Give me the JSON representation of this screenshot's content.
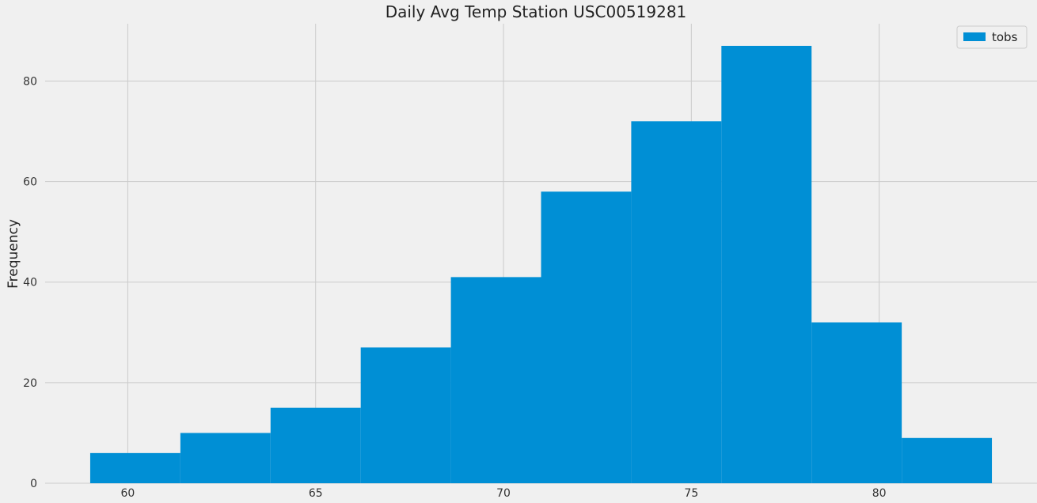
{
  "chart_data": {
    "type": "bar",
    "title": "Daily Avg Temp Station USC00519281",
    "xlabel": "",
    "ylabel": "Frequency",
    "xlim": [
      57.8,
      84.2
    ],
    "ylim": [
      0,
      91.4
    ],
    "xticks": [
      60,
      65,
      70,
      75,
      80
    ],
    "yticks": [
      0,
      20,
      40,
      60,
      80
    ],
    "grid": true,
    "legend": {
      "position": "top-right",
      "entries": [
        "tobs"
      ]
    },
    "series": [
      {
        "name": "tobs",
        "color": "#008fd5",
        "bins": [
          {
            "x0": 59.0,
            "x1": 61.4,
            "value": 6
          },
          {
            "x0": 61.4,
            "x1": 63.8,
            "value": 10
          },
          {
            "x0": 63.8,
            "x1": 66.2,
            "value": 15
          },
          {
            "x0": 66.2,
            "x1": 68.6,
            "value": 27
          },
          {
            "x0": 68.6,
            "x1": 71.0,
            "value": 41
          },
          {
            "x0": 71.0,
            "x1": 73.4,
            "value": 58
          },
          {
            "x0": 73.4,
            "x1": 75.8,
            "value": 72
          },
          {
            "x0": 75.8,
            "x1": 78.2,
            "value": 87
          },
          {
            "x0": 78.2,
            "x1": 80.6,
            "value": 32
          },
          {
            "x0": 80.6,
            "x1": 83.0,
            "value": 9
          }
        ]
      }
    ]
  }
}
